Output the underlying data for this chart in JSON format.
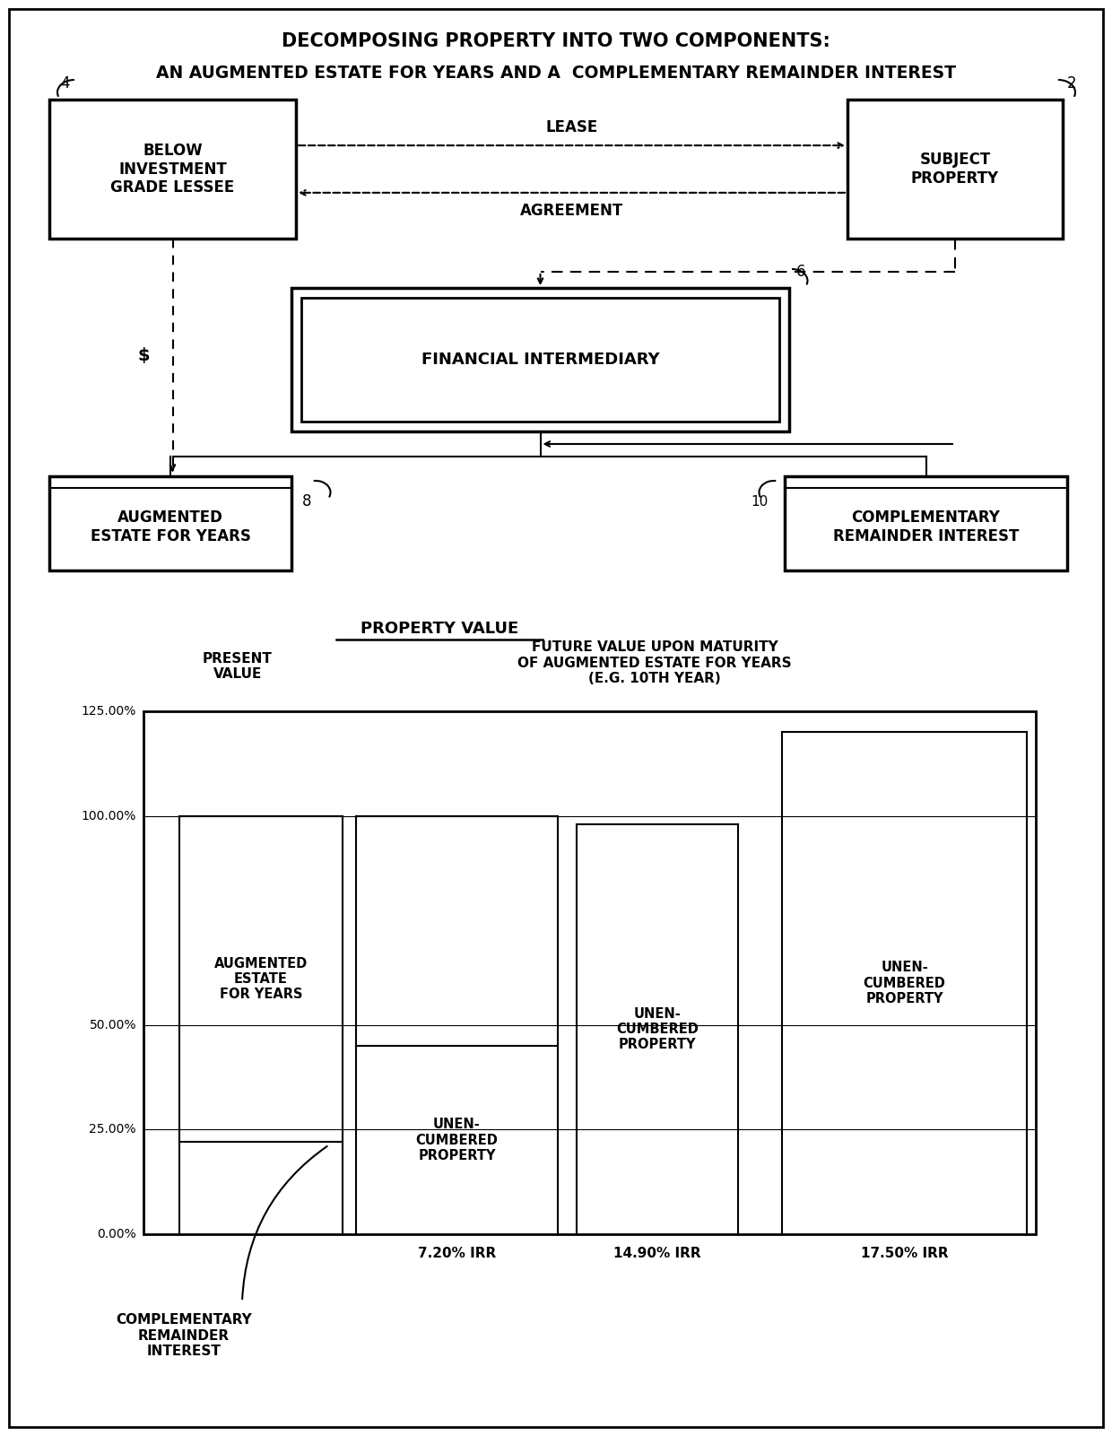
{
  "title_line1": "DECOMPOSING PROPERTY INTO TWO COMPONENTS:",
  "title_line2": "AN AUGMENTED ESTATE FOR YEARS AND A  COMPLEMENTARY REMAINDER INTEREST",
  "bg_color": "#ffffff",
  "lessee_label": "BELOW\nINVESTMENT\nGRADE LESSEE",
  "lessee_num": "4",
  "subject_label": "SUBJECT\nPROPERTY",
  "subject_num": "2",
  "fi_label": "FINANCIAL INTERMEDIARY",
  "fi_num": "6",
  "ae_label": "AUGMENTED\nESTATE FOR YEARS",
  "ae_num": "8",
  "cr_label": "COMPLEMENTARY\nREMAINDER INTEREST",
  "cr_num": "10",
  "lease_label": "LEASE",
  "agreement_label": "AGREEMENT",
  "dollar_label": "$",
  "chart_title": "PROPERTY VALUE",
  "col_label1a": "PRESENT",
  "col_label1b": "VALUE",
  "col_label2": "FUTURE VALUE UPON MATURITY\nOF AUGMENTED ESTATE FOR YEARS\n(E.G. 10TH YEAR)",
  "ytick_vals": [
    0,
    25,
    50,
    100,
    125
  ],
  "ytick_labels": [
    "0.00%",
    "25.00%",
    "50.00%",
    "100.00%",
    "125.00%"
  ],
  "irr_labels": [
    "7.20% IRR",
    "14.90% IRR",
    "17.50% IRR"
  ],
  "complementary_chart_label": "COMPLEMENTARY\nREMAINDER\nINTEREST",
  "ae_chart_label": "AUGMENTED\nESTATE\nFOR YEARS",
  "unen_label": "UNEN-\nCUMBERED\nPROPERTY"
}
